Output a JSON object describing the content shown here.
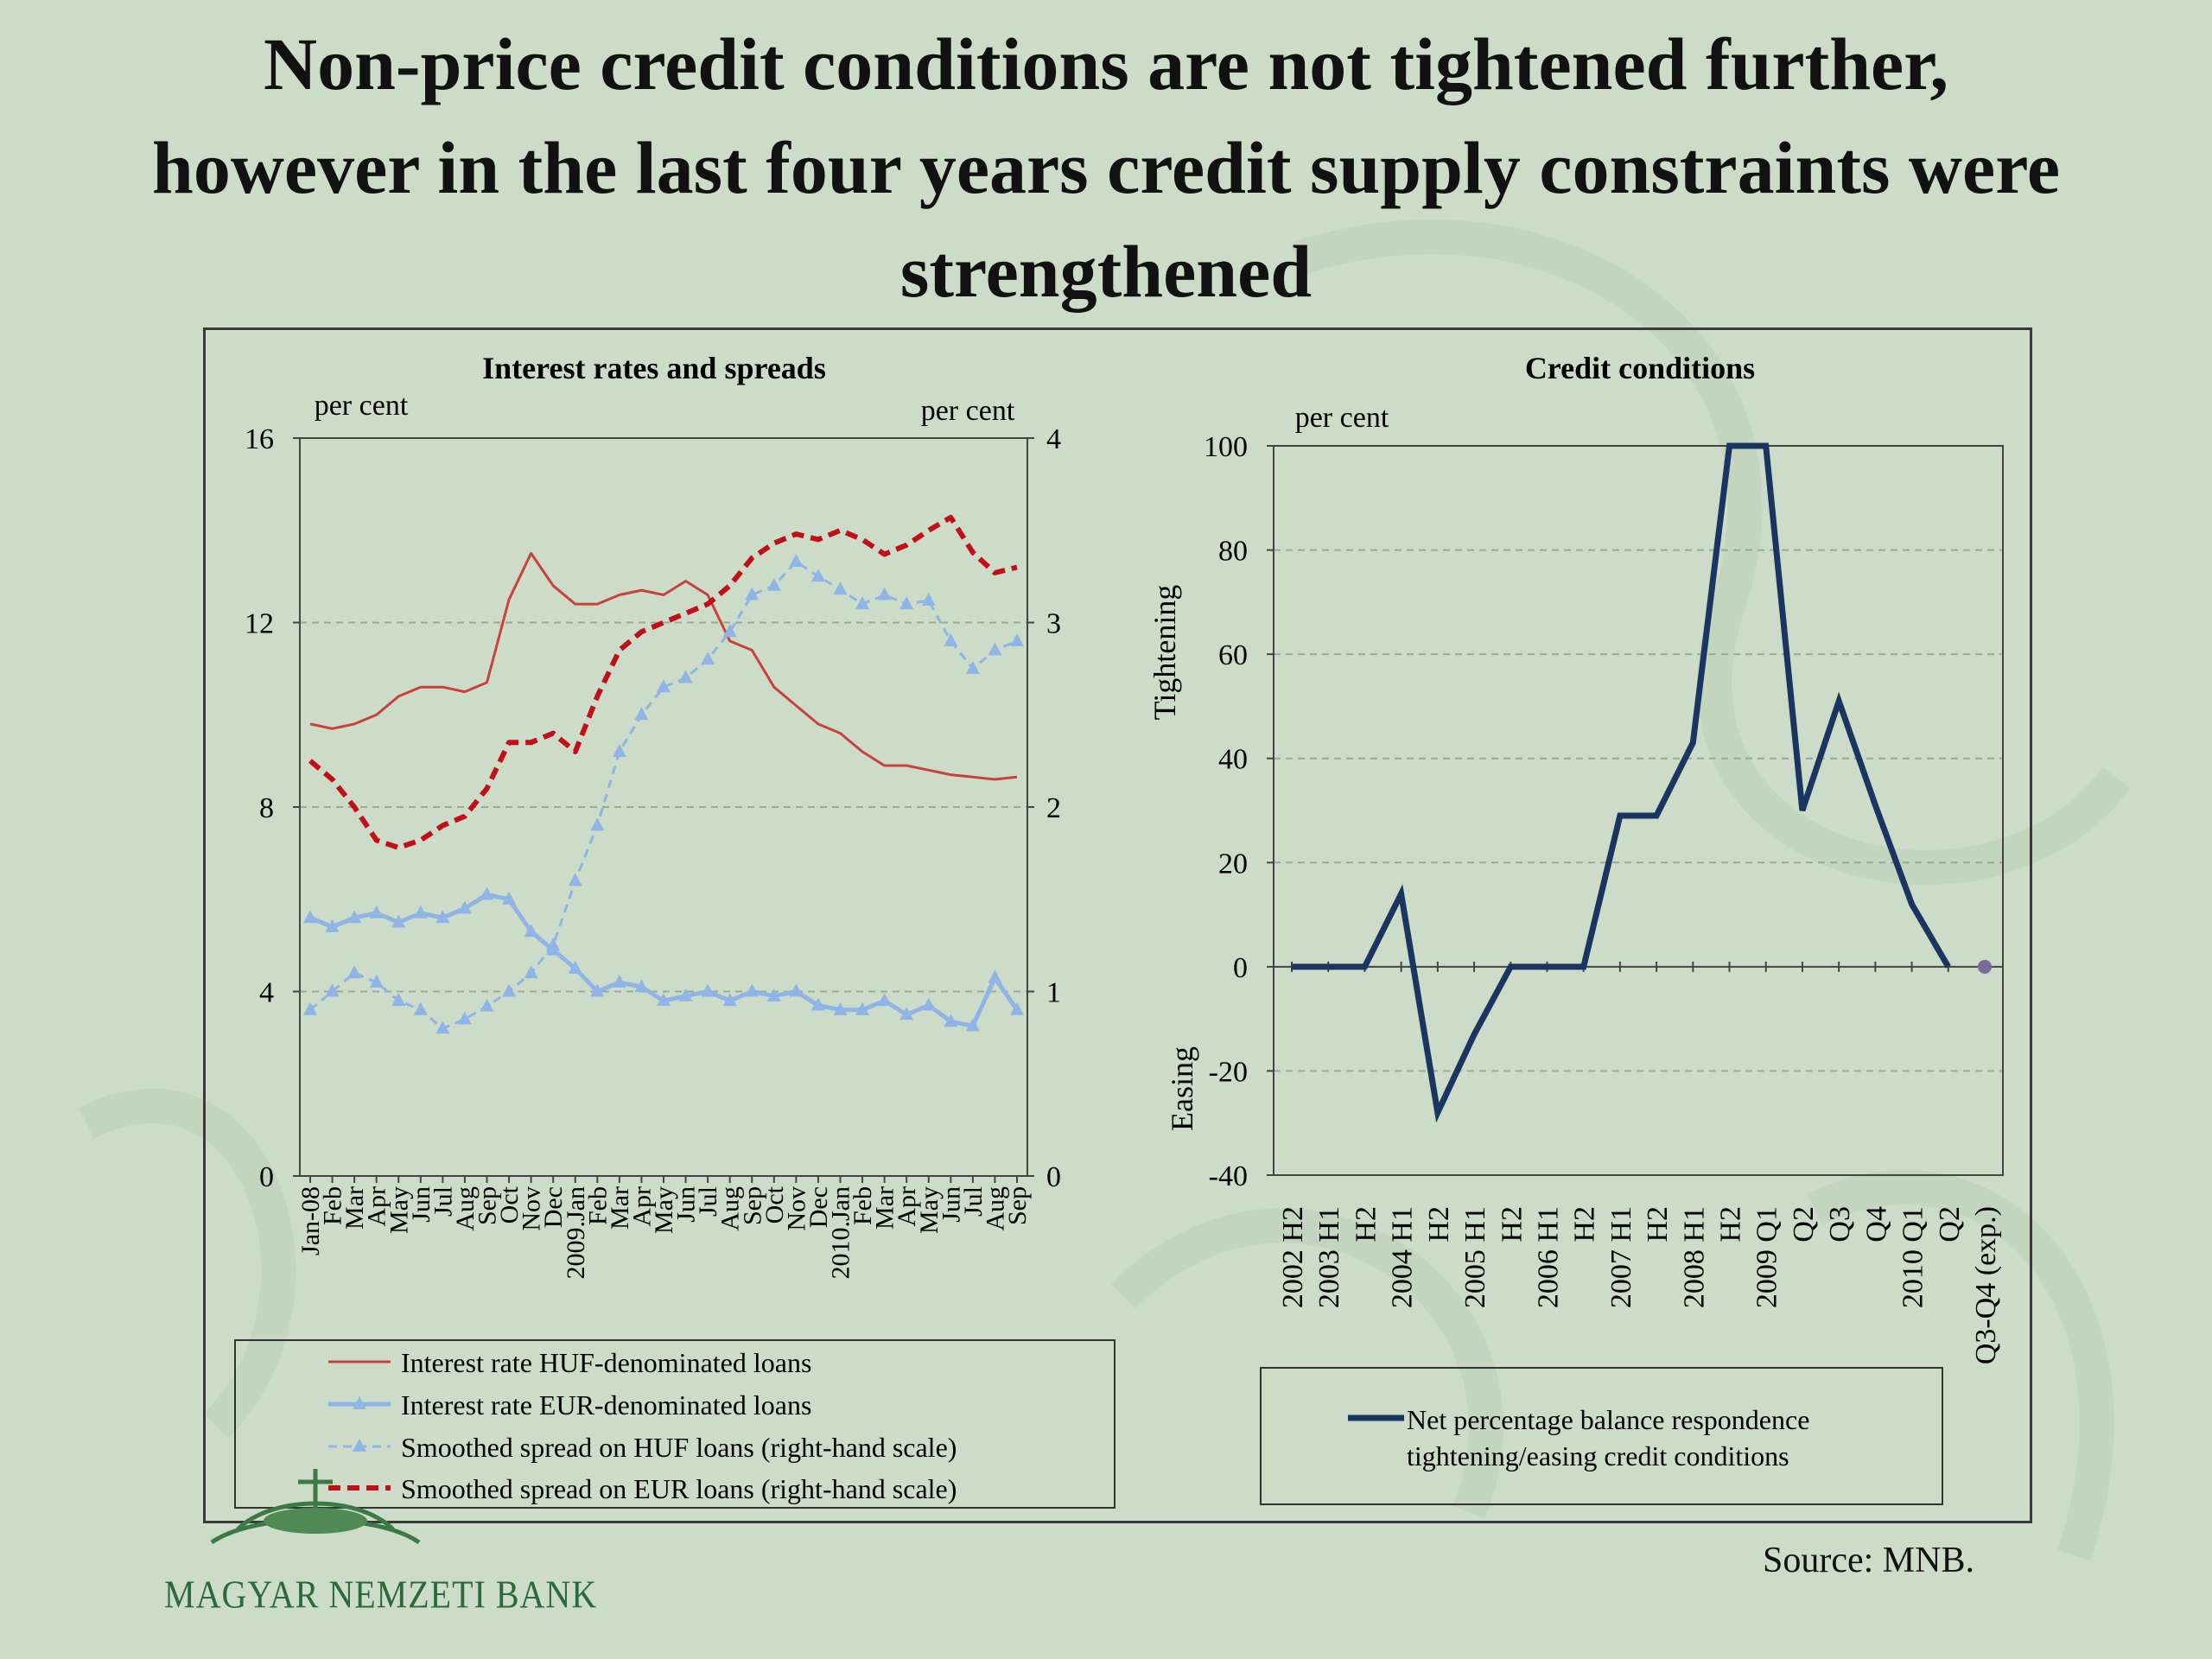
{
  "title_lines": [
    "Non-price credit conditions are not tightened further,",
    "however in the last four years credit supply constraints were",
    "strengthened"
  ],
  "source": "Source: MNB.",
  "logo_text": "MAGYAR NEMZETI BANK",
  "colors": {
    "huf_rate": "#c8423c",
    "eur_rate": "#8fb4e6",
    "huf_spread": "#8fb4e6",
    "eur_spread": "#c0101a",
    "credit_line": "#1a3560",
    "exp_dot": "#7a6a9a"
  },
  "chart_data": [
    {
      "type": "line",
      "title": "Interest rates and spreads",
      "ylabel_left": "per cent",
      "ylabel_right": "per cent",
      "ylim_left": [
        0,
        16
      ],
      "ylim_right": [
        0,
        4
      ],
      "yticks_left": [
        0,
        4,
        8,
        12,
        16
      ],
      "yticks_right": [
        0,
        1,
        2,
        3,
        4
      ],
      "grid": true,
      "x": [
        "Jan-08",
        "Feb",
        "Mar",
        "Apr",
        "May",
        "Jun",
        "Jul",
        "Aug",
        "Sep",
        "Oct",
        "Nov",
        "Dec",
        "2009.Jan",
        "Feb",
        "Mar",
        "Apr",
        "May",
        "Jun",
        "Jul",
        "Aug",
        "Sep",
        "Oct",
        "Nov",
        "Dec",
        "2010.Jan",
        "Feb",
        "Mar",
        "Apr",
        "May",
        "Jun",
        "Jul",
        "Aug",
        "Sep"
      ],
      "series": [
        {
          "name": "Interest rate HUF-denominated loans",
          "axis": "left",
          "style": "solid",
          "values": [
            9.8,
            9.7,
            9.8,
            10.0,
            10.4,
            10.6,
            10.6,
            10.5,
            10.7,
            12.5,
            13.5,
            12.8,
            12.4,
            12.4,
            12.6,
            12.7,
            12.6,
            12.9,
            12.6,
            11.6,
            11.4,
            10.6,
            10.2,
            9.8,
            9.6,
            9.2,
            8.9,
            8.9,
            8.8,
            8.7,
            8.65,
            8.6,
            8.65
          ]
        },
        {
          "name": "Interest rate EUR-denominated loans",
          "axis": "left",
          "style": "solid-triangle",
          "values": [
            5.6,
            5.4,
            5.6,
            5.7,
            5.5,
            5.7,
            5.6,
            5.8,
            6.1,
            6.0,
            5.3,
            4.9,
            4.5,
            4.0,
            4.2,
            4.1,
            3.8,
            3.9,
            4.0,
            3.8,
            4.0,
            3.9,
            4.0,
            3.7,
            3.6,
            3.6,
            3.8,
            3.5,
            3.7,
            3.35,
            3.25,
            4.3,
            3.6
          ]
        },
        {
          "name": "Smoothed spread on HUF loans (right-hand scale)",
          "axis": "right",
          "style": "dashed-triangle",
          "values": [
            0.9,
            1.0,
            1.1,
            1.05,
            0.95,
            0.9,
            0.8,
            0.85,
            0.92,
            1.0,
            1.1,
            1.25,
            1.6,
            1.9,
            2.3,
            2.5,
            2.65,
            2.7,
            2.8,
            2.95,
            3.15,
            3.2,
            3.33,
            3.25,
            3.18,
            3.1,
            3.15,
            3.1,
            3.12,
            2.9,
            2.75,
            2.85,
            2.9
          ]
        },
        {
          "name": "Smoothed spread on EUR loans (right-hand scale)",
          "axis": "right",
          "style": "dashed",
          "values": [
            2.25,
            2.15,
            2.0,
            1.82,
            1.78,
            1.82,
            1.9,
            1.95,
            2.1,
            2.35,
            2.35,
            2.4,
            2.3,
            2.6,
            2.85,
            2.95,
            3.0,
            3.05,
            3.1,
            3.2,
            3.35,
            3.43,
            3.48,
            3.45,
            3.5,
            3.45,
            3.37,
            3.42,
            3.5,
            3.57,
            3.38,
            3.27,
            3.3
          ]
        }
      ]
    },
    {
      "type": "line",
      "title": "Credit conditions",
      "ylabel": "per cent",
      "ylabel_top": "Tightening",
      "ylabel_bottom": "Easing",
      "ylim": [
        -40,
        100
      ],
      "yticks": [
        -40,
        -20,
        0,
        20,
        40,
        60,
        80,
        100
      ],
      "grid": true,
      "x": [
        "2002 H2",
        "2003 H1",
        "H2",
        "2004 H1",
        "H2",
        "2005 H1",
        "H2",
        "2006 H1",
        "H2",
        "2007 H1",
        "H2",
        "2008 H1",
        "H2",
        "2009 Q1",
        "Q2",
        "Q3",
        "Q4",
        "2010 Q1",
        "Q2",
        "Q3-Q4 (exp.)"
      ],
      "series": [
        {
          "name": "Net percentage balance respondence tightening/easing credit conditions",
          "values": [
            0,
            0,
            0,
            14,
            -28,
            -13,
            0,
            0,
            0,
            29,
            29,
            43,
            100,
            100,
            30,
            51,
            31,
            12,
            0,
            null
          ]
        }
      ],
      "expected": {
        "label": "Q3-Q4 (exp.)",
        "value": 0
      }
    }
  ],
  "legend_left": [
    "Interest rate HUF-denominated loans",
    "Interest rate EUR-denominated loans",
    "Smoothed spread on HUF loans (right-hand scale)",
    "Smoothed spread on EUR loans (right-hand scale)"
  ],
  "legend_right": [
    "Net percentage balance respondence",
    "tightening/easing credit conditions"
  ]
}
